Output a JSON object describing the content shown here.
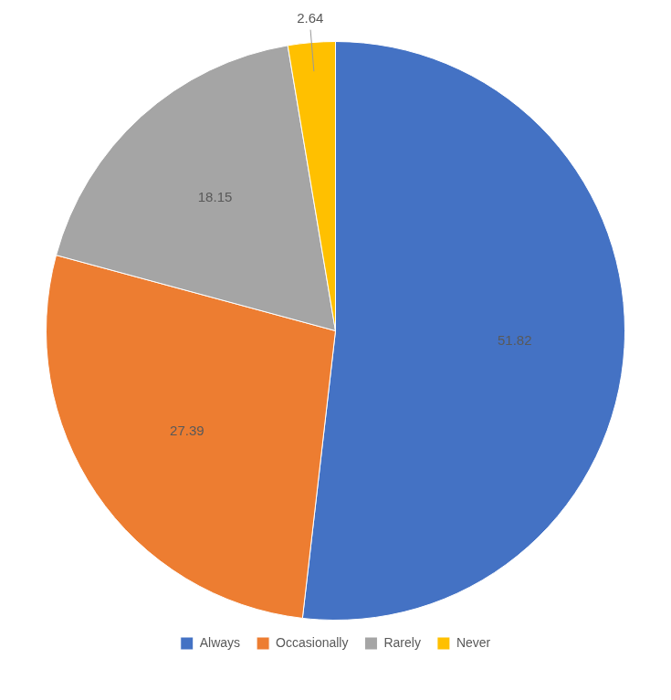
{
  "chart_data": {
    "type": "pie",
    "categories": [
      "Always",
      "Occasionally",
      "Rarely",
      "Never"
    ],
    "values": [
      51.82,
      27.39,
      18.15,
      2.64
    ],
    "colors": [
      "#4472C4",
      "#ED7D31",
      "#A5A5A5",
      "#FFC000"
    ],
    "data_labels": true,
    "legend": "bottom"
  }
}
